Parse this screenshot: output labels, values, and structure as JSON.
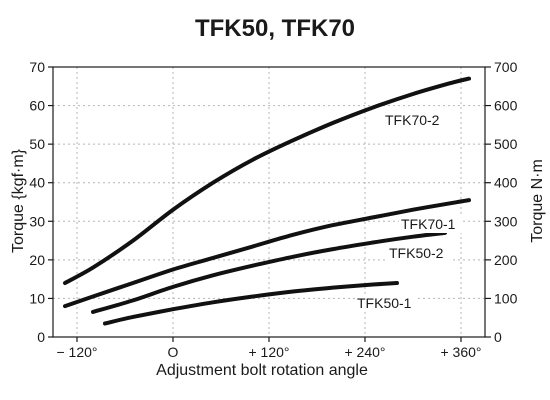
{
  "chart_data": {
    "type": "line",
    "title": "TFK50, TFK70",
    "xlabel": "Adjustment bolt rotation angle",
    "ylabel": "Torque {kgf·m}",
    "ylabel_right": "Torque N·m",
    "xlim": [
      -150,
      390
    ],
    "ylim": [
      0,
      70
    ],
    "ylim_right": [
      0,
      700
    ],
    "x_ticks": [
      {
        "value": -120,
        "label": "− 120°"
      },
      {
        "value": 0,
        "label": "O"
      },
      {
        "value": 120,
        "label": "+ 120°"
      },
      {
        "value": 240,
        "label": "+ 240°"
      },
      {
        "value": 360,
        "label": "+ 360°"
      }
    ],
    "y_ticks": [
      {
        "value": 0,
        "label": "0"
      },
      {
        "value": 10,
        "label": "10"
      },
      {
        "value": 20,
        "label": "20"
      },
      {
        "value": 30,
        "label": "30"
      },
      {
        "value": 40,
        "label": "40"
      },
      {
        "value": 50,
        "label": "50"
      },
      {
        "value": 60,
        "label": "60"
      },
      {
        "value": 70,
        "label": "70"
      }
    ],
    "y_right_ticks": [
      {
        "value": 0,
        "label": "0"
      },
      {
        "value": 100,
        "label": "100"
      },
      {
        "value": 200,
        "label": "200"
      },
      {
        "value": 300,
        "label": "300"
      },
      {
        "value": 400,
        "label": "400"
      },
      {
        "value": 500,
        "label": "500"
      },
      {
        "value": 600,
        "label": "600"
      },
      {
        "value": 700,
        "label": "700"
      }
    ],
    "grid": true,
    "series": [
      {
        "name": "TFK70-2",
        "x": [
          -135,
          -100,
          -50,
          0,
          50,
          100,
          150,
          200,
          250,
          300,
          350,
          370
        ],
        "y": [
          14,
          18,
          25,
          33,
          40,
          46,
          51,
          55.5,
          59.5,
          63,
          66,
          67
        ]
      },
      {
        "name": "TFK70-1",
        "x": [
          -135,
          -100,
          -50,
          0,
          50,
          100,
          150,
          200,
          250,
          300,
          350,
          370
        ],
        "y": [
          8,
          10.5,
          14,
          17.5,
          20.5,
          23.5,
          26.5,
          29,
          31,
          33,
          34.8,
          35.5
        ]
      },
      {
        "name": "TFK50-2",
        "x": [
          -100,
          -50,
          0,
          50,
          100,
          150,
          200,
          250,
          300,
          340
        ],
        "y": [
          6.5,
          9.5,
          13,
          16,
          18.5,
          20.8,
          22.8,
          24.5,
          26,
          27
        ]
      },
      {
        "name": "TFK50-1",
        "x": [
          -85,
          -50,
          0,
          50,
          100,
          150,
          200,
          250,
          280
        ],
        "y": [
          3.5,
          5.2,
          7.2,
          9,
          10.5,
          11.8,
          12.8,
          13.6,
          14
        ]
      }
    ],
    "series_labels": [
      {
        "text": "TFK70-2",
        "x": 265,
        "y": 55
      },
      {
        "text": "TFK70-1",
        "x": 285,
        "y": 28
      },
      {
        "text": "TFK50-2",
        "x": 270,
        "y": 20.5
      },
      {
        "text": "TFK50-1",
        "x": 230,
        "y": 7.5
      }
    ]
  }
}
